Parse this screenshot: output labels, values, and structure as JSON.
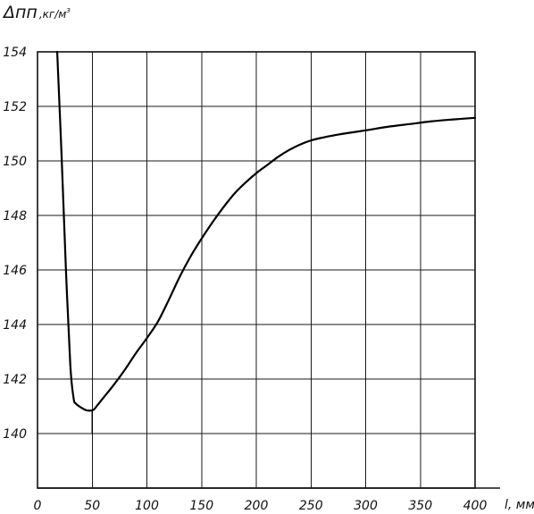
{
  "chart_data": {
    "type": "line",
    "title": "",
    "ylabel_main": "Δпп",
    "ylabel_unit": ",кг/м",
    "ylabel_sup": "3",
    "xlabel": "l, мм",
    "xlim": [
      0,
      400
    ],
    "ylim": [
      138,
      154
    ],
    "grid": true,
    "x_ticks": [
      0,
      50,
      100,
      150,
      200,
      250,
      300,
      350,
      400
    ],
    "y_ticks": [
      140,
      142,
      144,
      146,
      148,
      150,
      152,
      154
    ],
    "x_tick_labels": [
      "0",
      "50",
      "100",
      "150",
      "200",
      "250",
      "300",
      "350",
      "400"
    ],
    "y_tick_labels": [
      "140",
      "142",
      "144",
      "146",
      "148",
      "150",
      "152",
      "154"
    ],
    "series": [
      {
        "x": [
          18,
          22,
          26,
          30,
          33,
          35,
          40,
          45,
          50,
          52,
          55,
          60,
          70,
          80,
          90,
          100,
          110,
          120,
          130,
          140,
          150,
          160,
          170,
          180,
          190,
          200,
          210,
          220,
          230,
          240,
          250,
          260,
          270,
          280,
          300,
          320,
          340,
          360,
          380,
          400
        ],
        "y": [
          154,
          150.2,
          146,
          142.5,
          141.3,
          141.1,
          140.95,
          140.85,
          140.85,
          140.9,
          141.05,
          141.3,
          141.8,
          142.35,
          142.95,
          143.5,
          144.1,
          144.9,
          145.75,
          146.5,
          147.15,
          147.75,
          148.3,
          148.8,
          149.2,
          149.55,
          149.85,
          150.15,
          150.4,
          150.6,
          150.75,
          150.85,
          150.93,
          151.0,
          151.12,
          151.25,
          151.35,
          151.45,
          151.52,
          151.58
        ]
      }
    ],
    "marker_line": {
      "x": 50,
      "y_from": 140.85,
      "y_to": 140
    }
  }
}
